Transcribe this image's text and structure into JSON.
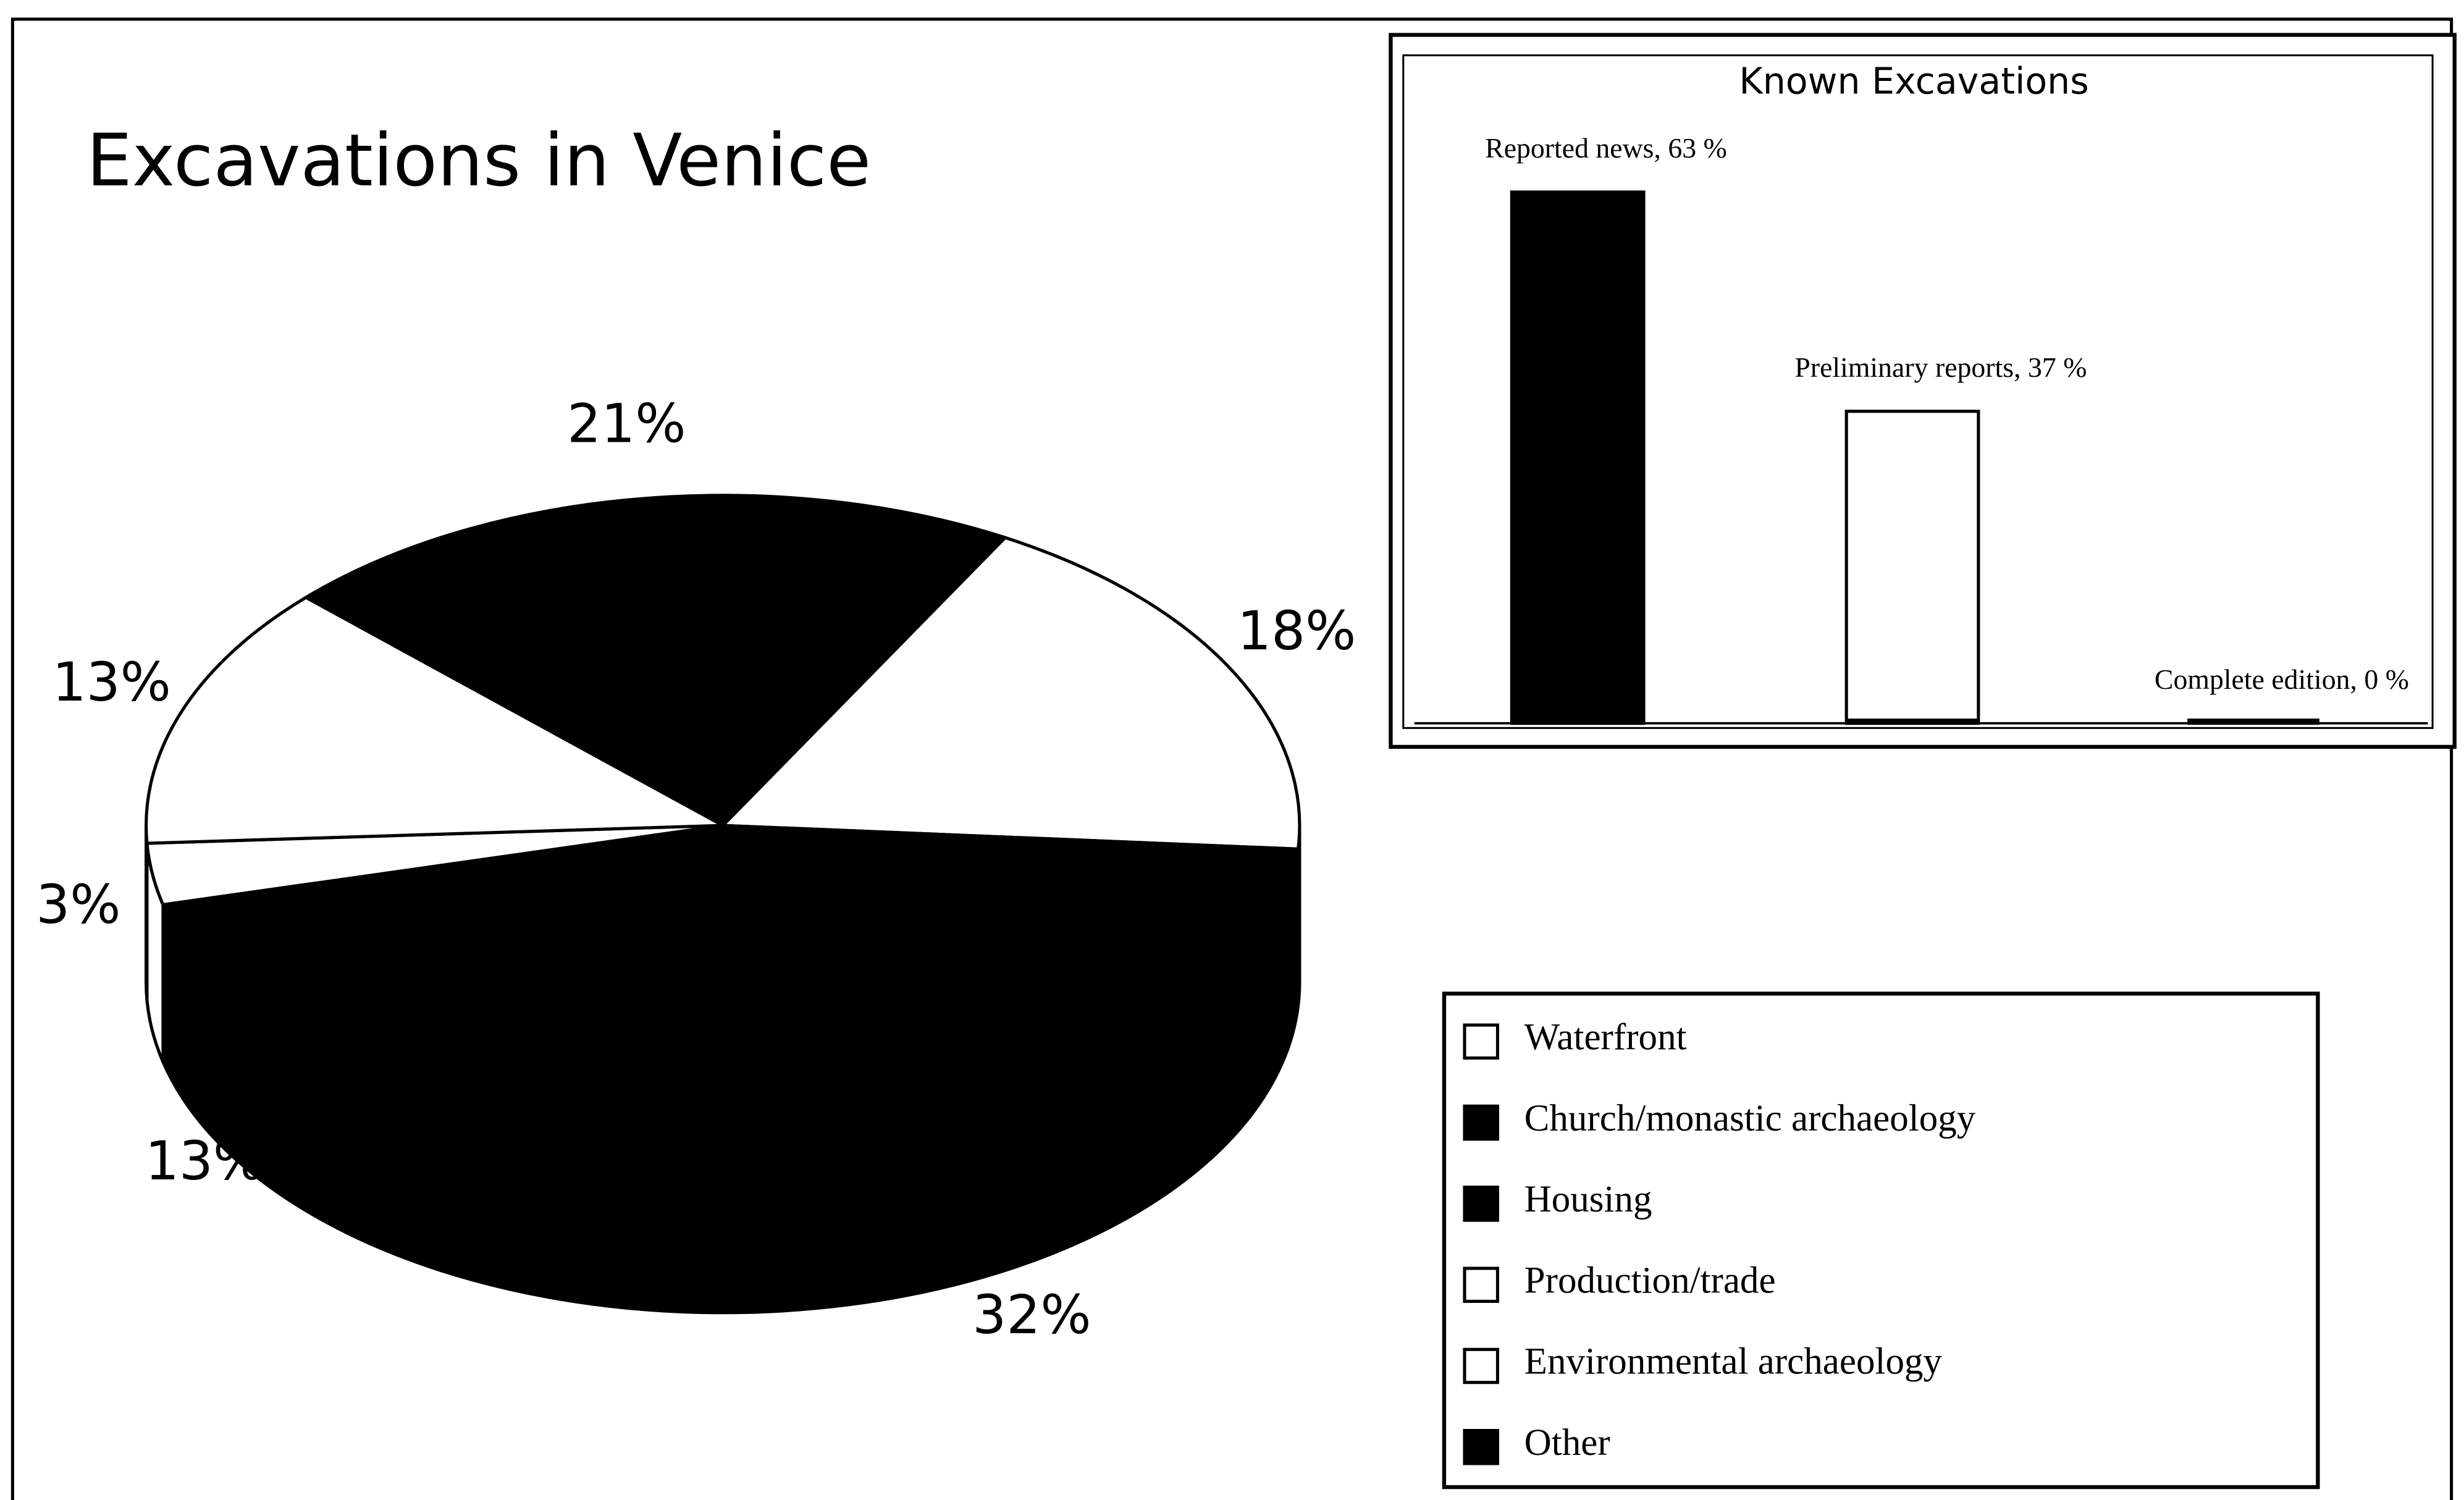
{
  "chart_data": [
    {
      "type": "pie3d",
      "title": "Excavations in Venice",
      "categories": [
        "Waterfront",
        "Church/monastic archaeology",
        "Housing",
        "Production/trade",
        "Environmental archaeology",
        "Other"
      ],
      "values": [
        18,
        32,
        13,
        3,
        13,
        21
      ],
      "value_labels": [
        "18%",
        "32%",
        "13%",
        "3%",
        "13%",
        "21%"
      ],
      "colors": [
        "#ffffff",
        "#000000",
        "#000000",
        "#ffffff",
        "#ffffff",
        "#000000"
      ],
      "legend": true
    },
    {
      "type": "bar",
      "title": "Known Excavations",
      "values": [
        63,
        37,
        0
      ],
      "value_labels": [
        "Reported news, 63 %",
        "Preliminary reports, 37 %",
        "Complete edition, 0 %"
      ],
      "colors": [
        "#000000",
        "#ffffff",
        "#000000"
      ]
    }
  ]
}
